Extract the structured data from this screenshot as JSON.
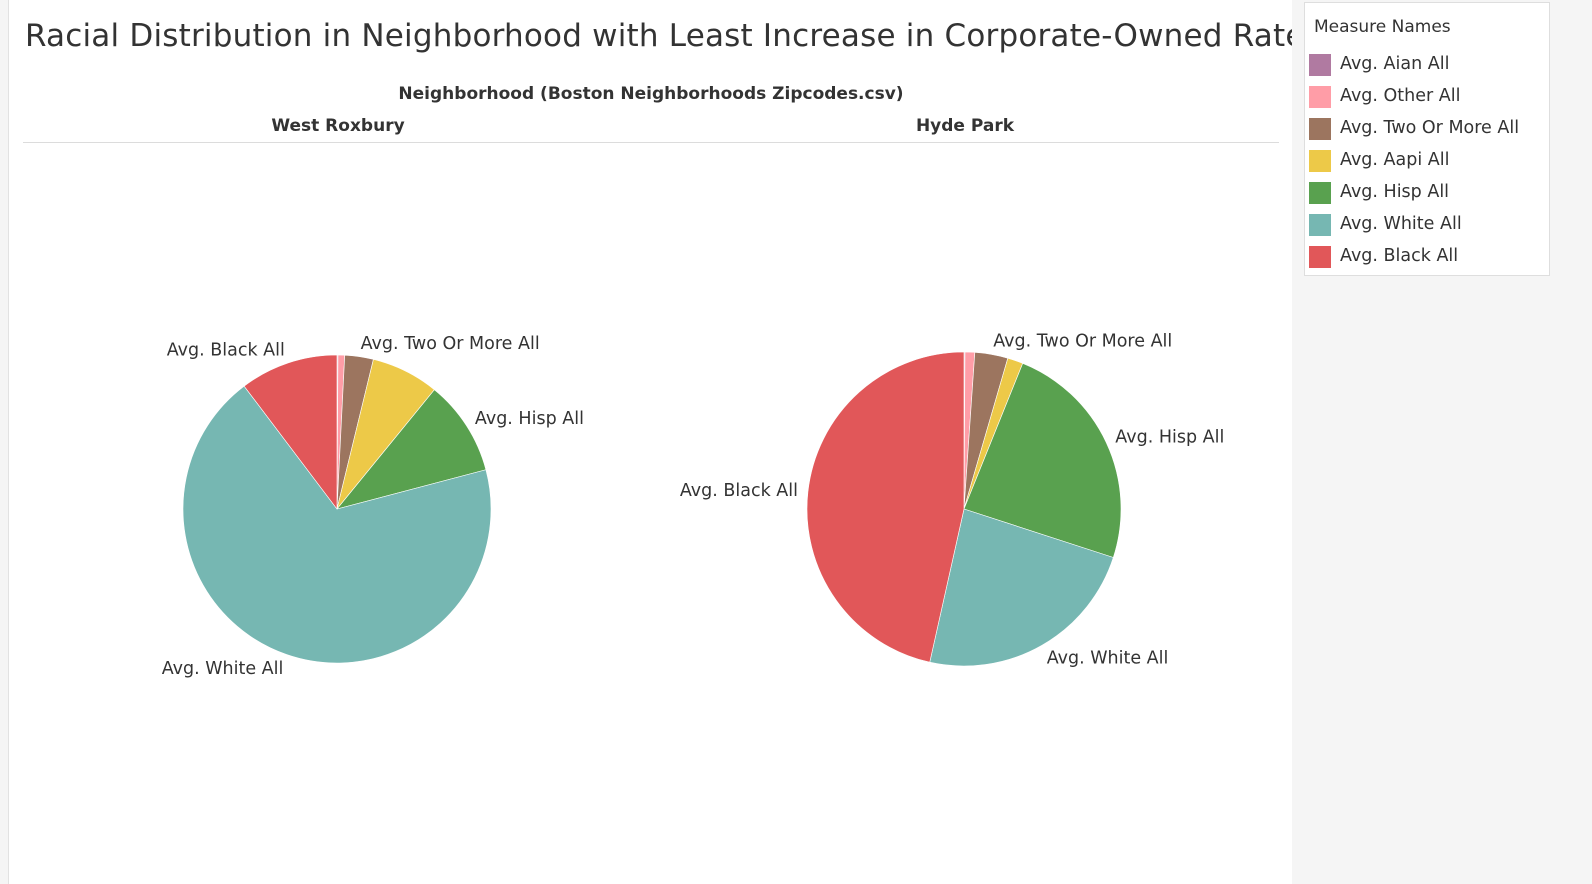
{
  "chart_data": {
    "type": "pie",
    "title": "Racial Distribution in Neighborhood with Least Increase in Corporate-Owned Rate",
    "column_header": "Neighborhood (Boston Neighborhoods Zipcodes.csv)",
    "legend": {
      "title": "Measure Names",
      "position": "right",
      "entries": [
        {
          "name": "Avg. Aian All",
          "color": "#b07aa1"
        },
        {
          "name": "Avg. Other All",
          "color": "#ff9da7"
        },
        {
          "name": "Avg. Two Or More All",
          "color": "#9c755f"
        },
        {
          "name": "Avg. Aapi All",
          "color": "#edc948"
        },
        {
          "name": "Avg. Hisp All",
          "color": "#59a14f"
        },
        {
          "name": "Avg. White All",
          "color": "#76b7b2"
        },
        {
          "name": "Avg. Black All",
          "color": "#e15759"
        }
      ]
    },
    "pies": [
      {
        "neighborhood": "West Roxbury",
        "slices": [
          {
            "category": "Avg. Aian All",
            "value": 0.1
          },
          {
            "category": "Avg. Other All",
            "value": 0.7
          },
          {
            "category": "Avg. Two Or More All",
            "value": 3.0
          },
          {
            "category": "Avg. Aapi All",
            "value": 7.1
          },
          {
            "category": "Avg. Hisp All",
            "value": 10.0
          },
          {
            "category": "Avg. White All",
            "value": 68.8
          },
          {
            "category": "Avg. Black All",
            "value": 10.3
          }
        ],
        "labeled": [
          "Avg. Black All",
          "Avg. Two Or More All",
          "Avg. Hisp All",
          "Avg. White All"
        ]
      },
      {
        "neighborhood": "Hyde Park",
        "slices": [
          {
            "category": "Avg. Aian All",
            "value": 0.1
          },
          {
            "category": "Avg. Other All",
            "value": 1.0
          },
          {
            "category": "Avg. Two Or More All",
            "value": 3.4
          },
          {
            "category": "Avg. Aapi All",
            "value": 1.6
          },
          {
            "category": "Avg. Hisp All",
            "value": 23.9
          },
          {
            "category": "Avg. White All",
            "value": 23.5
          },
          {
            "category": "Avg. Black All",
            "value": 46.5
          }
        ],
        "labeled": [
          "Avg. Two Or More All",
          "Avg. Hisp All",
          "Avg. Black All",
          "Avg. White All"
        ]
      }
    ]
  }
}
